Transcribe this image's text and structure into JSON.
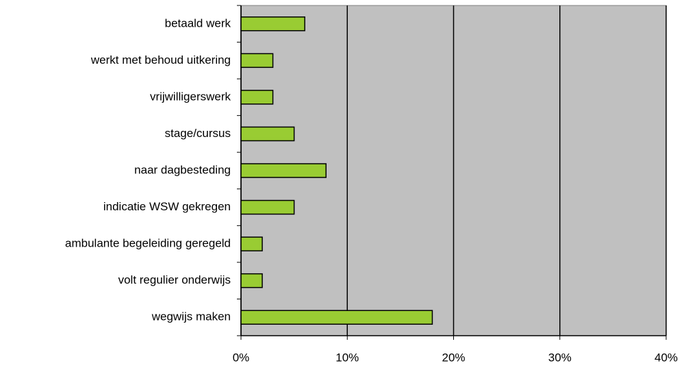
{
  "chart_data": {
    "type": "bar",
    "orientation": "horizontal",
    "categories": [
      "betaald werk",
      "werkt met behoud uitkering",
      "vrijwilligerswerk",
      "stage/cursus",
      "naar dagbesteding",
      "indicatie WSW gekregen",
      "ambulante begeleiding geregeld",
      "volt regulier onderwijs",
      "wegwijs maken"
    ],
    "values": [
      6,
      3,
      3,
      5,
      8,
      5,
      2,
      2,
      18
    ],
    "color": "#99cc33",
    "xlim": [
      0,
      40
    ],
    "xticks": [
      {
        "value": 0,
        "label": "0%"
      },
      {
        "value": 10,
        "label": "10%"
      },
      {
        "value": 20,
        "label": "20%"
      },
      {
        "value": 30,
        "label": "30%"
      },
      {
        "value": 40,
        "label": "40%"
      }
    ],
    "grid": true
  }
}
